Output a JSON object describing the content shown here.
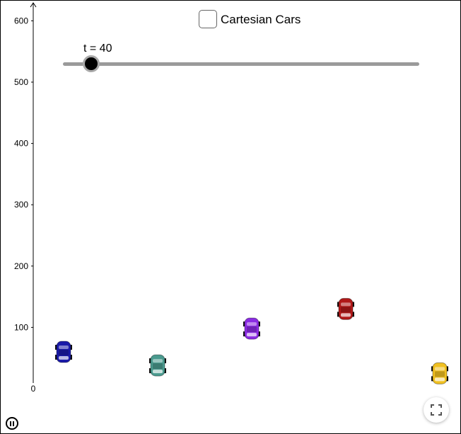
{
  "applet": {
    "title": "Cartesian Cars",
    "slider": {
      "label": "t = 40",
      "value": 40
    }
  },
  "axis": {
    "y_ticks": [
      "600",
      "500",
      "400",
      "300",
      "200",
      "100"
    ],
    "origin_label": "0"
  },
  "cars": [
    {
      "name": "blue-car",
      "color": "#1a1aa8",
      "y": 60
    },
    {
      "name": "teal-car",
      "color": "#4a9a8e",
      "y": 38
    },
    {
      "name": "purple-car",
      "color": "#8a2be2",
      "y": 98
    },
    {
      "name": "red-car",
      "color": "#b01818",
      "y": 130
    },
    {
      "name": "yellow-car",
      "color": "#f0c020",
      "y": 25
    }
  ],
  "controls": {
    "pause_icon": "pause-icon",
    "fullscreen_icon": "fullscreen-icon"
  }
}
